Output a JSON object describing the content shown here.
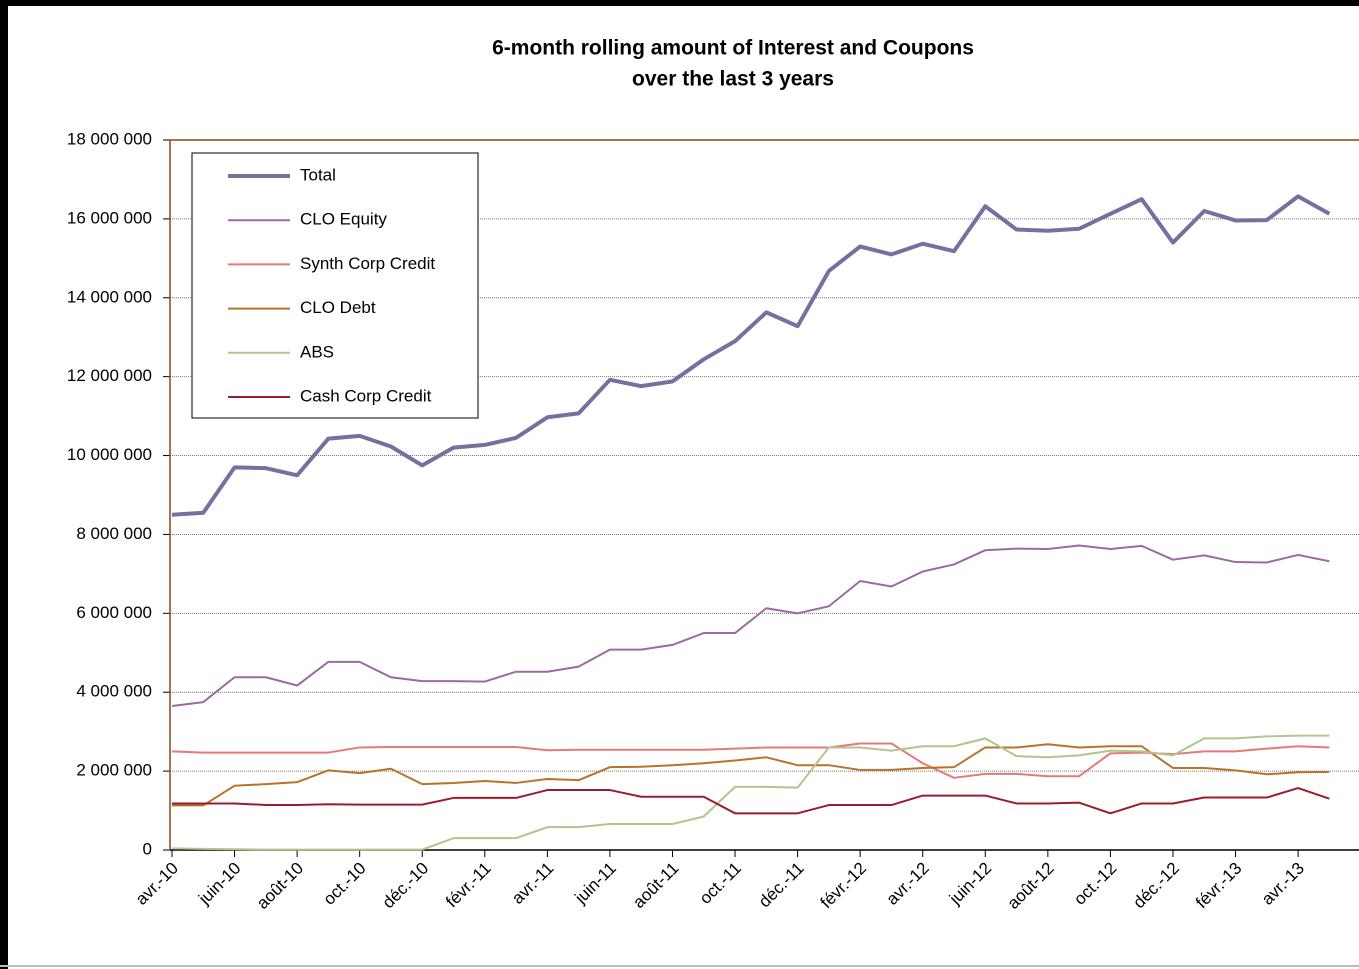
{
  "chart_data": {
    "type": "line",
    "title": "6-month rolling amount of Interest and Coupons",
    "subtitle": "over the last 3 years",
    "categories": [
      "avr.-10",
      null,
      "juin-10",
      null,
      "août-10",
      null,
      "oct.-10",
      null,
      "déc.-10",
      null,
      "févr.-11",
      null,
      "avr.-11",
      null,
      "juin-11",
      null,
      "août-11",
      null,
      "oct.-11",
      null,
      "déc.-11",
      null,
      "févr.-12",
      null,
      "avr.-12",
      null,
      "juin-12",
      null,
      "août-12",
      null,
      "oct.-12",
      null,
      "déc.-12",
      null,
      "févr.-13",
      null,
      "avr.-13",
      null
    ],
    "ylim": [
      0,
      18000000
    ],
    "yticks": [
      0,
      {
        "value": 2000000,
        "label": "2 000 000"
      },
      {
        "value": 4000000,
        "label": "4 000 000"
      },
      {
        "value": 6000000,
        "label": "6 000 000"
      },
      {
        "value": 8000000,
        "label": "8 000 000"
      },
      {
        "value": 10000000,
        "label": "10 000 000"
      },
      {
        "value": 12000000,
        "label": "12 000 000"
      },
      {
        "value": 14000000,
        "label": "14 000 000"
      },
      {
        "value": 16000000,
        "label": "16 000 000"
      },
      {
        "value": 18000000,
        "label": "18 000 000"
      }
    ],
    "grid": true,
    "legend": "top-left",
    "series": [
      {
        "name": "Total",
        "color": "#7470a0",
        "values": [
          8500000,
          8550000,
          9700000,
          9680000,
          9500000,
          10430000,
          10500000,
          10230000,
          9750000,
          10200000,
          10270000,
          10450000,
          10970000,
          11070000,
          11920000,
          11760000,
          11880000,
          12440000,
          12900000,
          13630000,
          13280000,
          14680000,
          15300000,
          15100000,
          15370000,
          15180000,
          16320000,
          15730000,
          15700000,
          15750000,
          16130000,
          16500000,
          15400000,
          16200000,
          15960000,
          15970000,
          16570000,
          16130000
        ]
      },
      {
        "name": "CLO Equity",
        "color": "#9b6aa0",
        "values": [
          3650000,
          3750000,
          4380000,
          4380000,
          4170000,
          4770000,
          4770000,
          4380000,
          4280000,
          4280000,
          4270000,
          4520000,
          4520000,
          4650000,
          5080000,
          5080000,
          5200000,
          5500000,
          5500000,
          6130000,
          6000000,
          6180000,
          6820000,
          6680000,
          7060000,
          7240000,
          7600000,
          7640000,
          7630000,
          7720000,
          7630000,
          7710000,
          7360000,
          7470000,
          7300000,
          7290000,
          7480000,
          7320000
        ]
      },
      {
        "name": "Synth Corp Credit",
        "color": "#e8787a",
        "values": [
          2500000,
          2470000,
          2470000,
          2470000,
          2470000,
          2470000,
          2600000,
          2610000,
          2610000,
          2610000,
          2610000,
          2610000,
          2530000,
          2540000,
          2540000,
          2540000,
          2540000,
          2540000,
          2570000,
          2600000,
          2600000,
          2600000,
          2700000,
          2700000,
          2200000,
          1830000,
          1930000,
          1930000,
          1870000,
          1870000,
          2450000,
          2470000,
          2430000,
          2500000,
          2500000,
          2570000,
          2630000,
          2600000
        ]
      },
      {
        "name": "CLO Debt",
        "color": "#b8732a",
        "values": [
          1130000,
          1130000,
          1630000,
          1670000,
          1720000,
          2020000,
          1950000,
          2060000,
          1670000,
          1700000,
          1750000,
          1700000,
          1800000,
          1770000,
          2100000,
          2110000,
          2150000,
          2200000,
          2270000,
          2350000,
          2150000,
          2150000,
          2030000,
          2030000,
          2080000,
          2100000,
          2600000,
          2600000,
          2680000,
          2600000,
          2630000,
          2630000,
          2080000,
          2080000,
          2020000,
          1920000,
          1970000,
          1980000
        ]
      },
      {
        "name": "ABS",
        "color": "#b5c38f",
        "values": [
          40000,
          30000,
          20000,
          10000,
          10000,
          10000,
          10000,
          10000,
          10000,
          300000,
          300000,
          300000,
          580000,
          580000,
          660000,
          660000,
          660000,
          850000,
          1600000,
          1600000,
          1580000,
          2600000,
          2600000,
          2520000,
          2630000,
          2630000,
          2830000,
          2380000,
          2350000,
          2400000,
          2520000,
          2500000,
          2400000,
          2830000,
          2830000,
          2880000,
          2900000,
          2900000
        ]
      },
      {
        "name": "Cash Corp Credit",
        "color": "#9b1c2c",
        "values": [
          1180000,
          1180000,
          1180000,
          1140000,
          1140000,
          1160000,
          1150000,
          1150000,
          1150000,
          1320000,
          1320000,
          1320000,
          1520000,
          1520000,
          1520000,
          1350000,
          1350000,
          1350000,
          930000,
          930000,
          930000,
          1140000,
          1140000,
          1140000,
          1380000,
          1380000,
          1380000,
          1180000,
          1180000,
          1200000,
          930000,
          1180000,
          1180000,
          1330000,
          1330000,
          1330000,
          1570000,
          1300000
        ]
      }
    ]
  }
}
